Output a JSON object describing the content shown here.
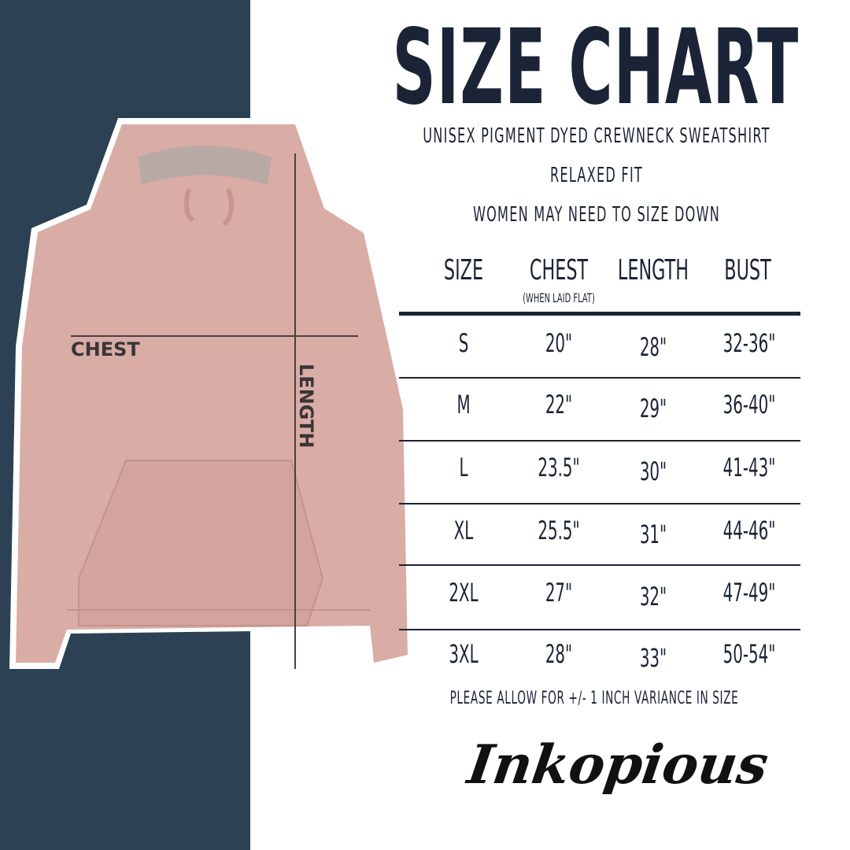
{
  "title": "SIZE CHART",
  "subtitle_lines": [
    "UNISEX PIGMENT DYED CREWNECK SWEATSHIRT",
    "RELAXED FIT",
    "WOMEN MAY NEED TO SIZE DOWN"
  ],
  "headers": {
    "size": "SIZE",
    "chest": "CHEST",
    "chest_note": "(WHEN LAID FLAT)",
    "length": "LENGTH",
    "bust": "BUST"
  },
  "rows": [
    {
      "size": "S",
      "chest": "20\"",
      "length": "28\"",
      "bust": "32-36\""
    },
    {
      "size": "M",
      "chest": "22\"",
      "length": "29\"",
      "bust": "36-40\""
    },
    {
      "size": "L",
      "chest": "23.5\"",
      "length": "30\"",
      "bust": "41-43\""
    },
    {
      "size": "XL",
      "chest": "25.5\"",
      "length": "31\"",
      "bust": "44-46\""
    },
    {
      "size": "2XL",
      "chest": "27\"",
      "length": "32\"",
      "bust": "47-49\""
    },
    {
      "size": "3XL",
      "chest": "28\"",
      "length": "33\"",
      "bust": "50-54\""
    }
  ],
  "footnote": "PLEASE ALLOW FOR +/- 1 INCH VARIANCE IN SIZE",
  "measure_labels": {
    "chest": "CHEST",
    "length": "LENGTH"
  },
  "brand": "Inkopious",
  "colors": {
    "text": "#1b2436",
    "panel": "#2c4153",
    "garment": "#d9aca6"
  }
}
